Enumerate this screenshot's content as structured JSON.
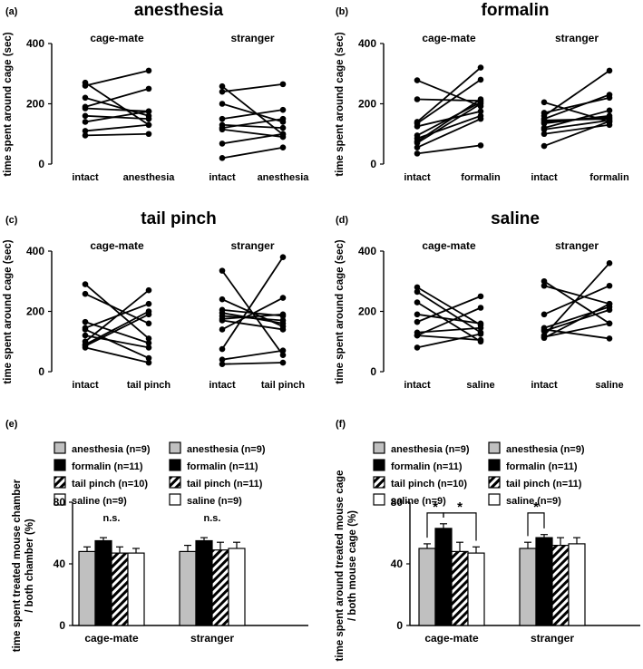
{
  "chart_data": [
    {
      "id": "a",
      "type": "line",
      "panel_label": "(a)",
      "title": "anesthesia",
      "ylabel": "time spent around cage (sec)",
      "ylim": [
        0,
        400
      ],
      "yticks": [
        0,
        200,
        400
      ],
      "groups": [
        {
          "name": "cage-mate",
          "x_labels": [
            "intact",
            "anesthesia"
          ],
          "pairs": [
            [
              270,
              130
            ],
            [
              260,
              310
            ],
            [
              220,
              160
            ],
            [
              190,
              250
            ],
            [
              185,
              175
            ],
            [
              160,
              150
            ],
            [
              140,
              175
            ],
            [
              110,
              130
            ],
            [
              95,
              100
            ]
          ]
        },
        {
          "name": "stranger",
          "x_labels": [
            "intact",
            "anesthesia"
          ],
          "pairs": [
            [
              258,
              98
            ],
            [
              240,
              265
            ],
            [
              200,
              140
            ],
            [
              150,
              180
            ],
            [
              130,
              120
            ],
            [
              120,
              150
            ],
            [
              115,
              90
            ],
            [
              68,
              100
            ],
            [
              20,
              55
            ]
          ]
        }
      ]
    },
    {
      "id": "b",
      "type": "line",
      "panel_label": "(b)",
      "title": "formalin",
      "ylabel": "time spent around cage (sec)",
      "ylim": [
        0,
        400
      ],
      "yticks": [
        0,
        200,
        400
      ],
      "groups": [
        {
          "name": "cage-mate",
          "x_labels": [
            "intact",
            "formalin"
          ],
          "pairs": [
            [
              278,
              192
            ],
            [
              215,
              210
            ],
            [
              140,
              320
            ],
            [
              135,
              280
            ],
            [
              125,
              175
            ],
            [
              95,
              205
            ],
            [
              85,
              160
            ],
            [
              75,
              215
            ],
            [
              70,
              200
            ],
            [
              55,
              150
            ],
            [
              35,
              62
            ]
          ]
        },
        {
          "name": "stranger",
          "x_labels": [
            "intact",
            "formalin"
          ],
          "pairs": [
            [
              205,
              140
            ],
            [
              170,
              220
            ],
            [
              160,
              310
            ],
            [
              150,
              230
            ],
            [
              145,
              150
            ],
            [
              140,
              155
            ],
            [
              135,
              160
            ],
            [
              120,
              178
            ],
            [
              115,
              145
            ],
            [
              100,
              130
            ],
            [
              60,
              142
            ]
          ]
        }
      ]
    },
    {
      "id": "c",
      "type": "line",
      "panel_label": "(c)",
      "title": "tail pinch",
      "ylabel": "time spent around cage (sec)",
      "ylim": [
        0,
        400
      ],
      "yticks": [
        0,
        200,
        400
      ],
      "groups": [
        {
          "name": "cage-mate",
          "x_labels": [
            "intact",
            "tail pinch"
          ],
          "pairs": [
            [
              290,
              110
            ],
            [
              258,
              160
            ],
            [
              165,
              95
            ],
            [
              145,
              225
            ],
            [
              140,
              45
            ],
            [
              120,
              80
            ],
            [
              100,
              270
            ],
            [
              90,
              200
            ],
            [
              85,
              190
            ],
            [
              80,
              30
            ]
          ]
        },
        {
          "name": "stranger",
          "x_labels": [
            "intact",
            "tail pinch"
          ],
          "pairs": [
            [
              335,
              55
            ],
            [
              240,
              150
            ],
            [
              205,
              185
            ],
            [
              195,
              160
            ],
            [
              185,
              170
            ],
            [
              175,
              190
            ],
            [
              170,
              140
            ],
            [
              140,
              245
            ],
            [
              75,
              380
            ],
            [
              40,
              70
            ],
            [
              25,
              30
            ]
          ]
        }
      ]
    },
    {
      "id": "d",
      "type": "line",
      "panel_label": "(d)",
      "title": "saline",
      "ylabel": "time spent around cage (sec)",
      "ylim": [
        0,
        400
      ],
      "yticks": [
        0,
        200,
        400
      ],
      "groups": [
        {
          "name": "cage-mate",
          "x_labels": [
            "intact",
            "saline"
          ],
          "pairs": [
            [
              280,
              155
            ],
            [
              265,
              130
            ],
            [
              230,
              100
            ],
            [
              190,
              160
            ],
            [
              165,
              250
            ],
            [
              130,
              145
            ],
            [
              120,
              212
            ],
            [
              120,
              105
            ],
            [
              80,
              125
            ]
          ]
        },
        {
          "name": "stranger",
          "x_labels": [
            "intact",
            "saline"
          ],
          "pairs": [
            [
              300,
              160
            ],
            [
              285,
              225
            ],
            [
              190,
              285
            ],
            [
              145,
              215
            ],
            [
              140,
              110
            ],
            [
              135,
              205
            ],
            [
              120,
              360
            ],
            [
              115,
              160
            ],
            [
              112,
              225
            ]
          ]
        }
      ]
    },
    {
      "id": "e",
      "type": "bar",
      "panel_label": "(e)",
      "ylabel": [
        "time spent treated mouse chamber",
        "/ both chamber (%)"
      ],
      "ylim": [
        0,
        80
      ],
      "yticks": [
        0,
        40,
        80
      ],
      "categories": [
        "cage-mate",
        "stranger"
      ],
      "legend": {
        "columns": [
          [
            "anesthesia (n=9)",
            "formalin (n=11)",
            "tail pinch (n=10)",
            "saline (n=9)"
          ],
          [
            "anesthesia (n=9)",
            "formalin (n=11)",
            "tail pinch (n=11)",
            "saline (n=9)"
          ]
        ]
      },
      "series": [
        {
          "name": "anesthesia",
          "fill": "#c0c0c0",
          "values": [
            48,
            48
          ],
          "errors": [
            3,
            4
          ]
        },
        {
          "name": "formalin",
          "fill": "#000000",
          "values": [
            55,
            55
          ],
          "errors": [
            2,
            2
          ]
        },
        {
          "name": "tail pinch",
          "fill": "hatch",
          "values": [
            47,
            49
          ],
          "errors": [
            4,
            5
          ]
        },
        {
          "name": "saline",
          "fill": "#ffffff",
          "values": [
            47,
            50
          ],
          "errors": [
            3,
            4
          ]
        }
      ],
      "annotations": [
        "n.s.",
        "n.s."
      ],
      "significance": []
    },
    {
      "id": "f",
      "type": "bar",
      "panel_label": "(f)",
      "ylabel": [
        "time spent around treated mouse cage",
        "/ both mouse cage (%)"
      ],
      "ylim": [
        0,
        80
      ],
      "yticks": [
        0,
        40,
        80
      ],
      "categories": [
        "cage-mate",
        "stranger"
      ],
      "legend": {
        "columns": [
          [
            "anesthesia (n=9)",
            "formalin (n=11)",
            "tail pinch (n=10)",
            "saline (n=9)"
          ],
          [
            "anesthesia (n=9)",
            "formalin (n=11)",
            "tail pinch (n=11)",
            "saline (n=9)"
          ]
        ]
      },
      "series": [
        {
          "name": "anesthesia",
          "fill": "#c0c0c0",
          "values": [
            50,
            50
          ],
          "errors": [
            3,
            4
          ]
        },
        {
          "name": "formalin",
          "fill": "#000000",
          "values": [
            63,
            57
          ],
          "errors": [
            3,
            2
          ]
        },
        {
          "name": "tail pinch",
          "fill": "hatch",
          "values": [
            48,
            52
          ],
          "errors": [
            6,
            5
          ]
        },
        {
          "name": "saline",
          "fill": "#ffffff",
          "values": [
            47,
            53
          ],
          "errors": [
            4,
            4
          ]
        }
      ],
      "annotations": [],
      "significance": [
        {
          "category": 0,
          "from_series": 0,
          "to_series": 1,
          "label": "*"
        },
        {
          "category": 0,
          "from_series": 1,
          "to_series": 3,
          "label": "*"
        },
        {
          "category": 1,
          "from_series": 0,
          "to_series": 1,
          "label": "*"
        }
      ]
    }
  ]
}
